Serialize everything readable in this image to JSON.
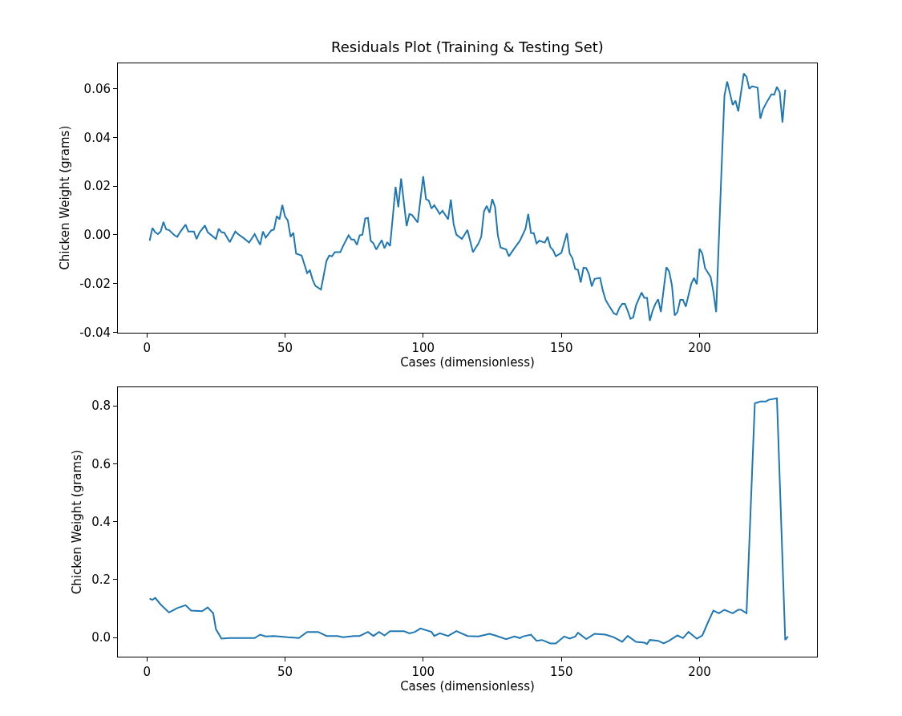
{
  "chart_data": [
    {
      "type": "line",
      "title": "Residuals Plot (Training & Testing Set)",
      "xlabel": "Cases (dimensionless)",
      "ylabel": "Chicken Weight (grams)",
      "xlim": [
        -10.5,
        242.5
      ],
      "ylim": [
        -0.0401,
        0.0705
      ],
      "xticks": [
        0,
        50,
        100,
        150,
        200
      ],
      "yticks": [
        {
          "value": -0.04,
          "label": "-0.04"
        },
        {
          "value": -0.02,
          "label": "-0.02"
        },
        {
          "value": 0,
          "label": "0.00"
        },
        {
          "value": 0.02,
          "label": "0.02"
        },
        {
          "value": 0.04,
          "label": "0.04"
        },
        {
          "value": 0.06,
          "label": "0.06"
        }
      ],
      "series": [
        {
          "color": "#1f77b4",
          "x": [
            1,
            2,
            3,
            4,
            5,
            6,
            7,
            8,
            10,
            11,
            12,
            14,
            15,
            17,
            18,
            19,
            21,
            22,
            25,
            26,
            27,
            28,
            30,
            32,
            33,
            35,
            37,
            39,
            41,
            42,
            43,
            45,
            46,
            47,
            48,
            49,
            50,
            51,
            52,
            53,
            54,
            56,
            58,
            59,
            60,
            61,
            63,
            65,
            66,
            67,
            68,
            70,
            71,
            73,
            74,
            75,
            76,
            77,
            78,
            79,
            80,
            81,
            82,
            83,
            85,
            86,
            87,
            88,
            90,
            91,
            92,
            94,
            95,
            96,
            98,
            100,
            101,
            102,
            103,
            104,
            106,
            107,
            109,
            110,
            111,
            112,
            114,
            116,
            118,
            120,
            121,
            122,
            123,
            124,
            125,
            126,
            127,
            128,
            130,
            131,
            133,
            135,
            137,
            138,
            139,
            140,
            141,
            142,
            144,
            145,
            146,
            147,
            148,
            150,
            152,
            153,
            154,
            155,
            156,
            157,
            158,
            159,
            160,
            161,
            162,
            164,
            165,
            166,
            167,
            169,
            170,
            171,
            172,
            173,
            174,
            175,
            176,
            177,
            179,
            180,
            181,
            182,
            183,
            184,
            185,
            186,
            188,
            189,
            190,
            191,
            192,
            193,
            194,
            195,
            197,
            198,
            199,
            200,
            201,
            202,
            204,
            205,
            206,
            208,
            209,
            210,
            212,
            213,
            214,
            216,
            217,
            218,
            219,
            221,
            222,
            223,
            224,
            226,
            227,
            228,
            229,
            230,
            231
          ],
          "values": [
            -0.0024,
            0.0028,
            0.0011,
            0.0003,
            0.0014,
            0.0053,
            0.0022,
            0.002,
            -0.0002,
            -0.0008,
            0.0011,
            0.0042,
            0.0014,
            0.0014,
            -0.0017,
            0.0009,
            0.0039,
            0.0011,
            -0.0017,
            0.0025,
            0.0011,
            0.0009,
            -0.003,
            0.0014,
            0.0003,
            -0.0013,
            -0.0032,
            0.0003,
            -0.0041,
            0.0014,
            -0.0011,
            0.0018,
            0.0022,
            0.0077,
            0.0064,
            0.0123,
            0.0075,
            0.0059,
            -0.0008,
            0.0009,
            -0.0077,
            -0.0085,
            -0.0157,
            -0.0146,
            -0.0185,
            -0.021,
            -0.0225,
            -0.0107,
            -0.0085,
            -0.0088,
            -0.0071,
            -0.0071,
            -0.0046,
            -0.0002,
            -0.0019,
            -0.0019,
            -0.0041,
            -0.0002,
            0.0001,
            0.0067,
            0.007,
            -0.0024,
            -0.0035,
            -0.006,
            -0.0022,
            -0.0055,
            -0.003,
            -0.0046,
            0.0197,
            0.0114,
            0.0232,
            0.0036,
            0.0086,
            0.0081,
            0.0051,
            0.0241,
            0.0147,
            0.0141,
            0.0108,
            0.0122,
            0.0086,
            0.0099,
            0.0064,
            0.0145,
            0.0044,
            0.0001,
            -0.0017,
            0.002,
            -0.0071,
            -0.0035,
            -0.0008,
            0.0097,
            0.0119,
            0.0091,
            0.0147,
            0.0114,
            -0.0002,
            -0.0052,
            -0.006,
            -0.0088,
            -0.0055,
            -0.0024,
            0.0025,
            0.0086,
            0.0007,
            0.0007,
            -0.0035,
            -0.0024,
            -0.0032,
            -0.0008,
            -0.005,
            -0.0063,
            -0.0088,
            -0.0074,
            0.0007,
            -0.0077,
            -0.0096,
            -0.014,
            -0.0144,
            -0.0196,
            -0.0135,
            -0.0137,
            -0.0162,
            -0.0212,
            -0.0181,
            -0.0177,
            -0.0229,
            -0.0267,
            -0.0287,
            -0.0323,
            -0.0328,
            -0.03,
            -0.0284,
            -0.0284,
            -0.0312,
            -0.0345,
            -0.0339,
            -0.029,
            -0.0237,
            -0.0259,
            -0.0259,
            -0.0353,
            -0.0312,
            -0.0284,
            -0.0265,
            -0.0317,
            -0.0133,
            -0.0151,
            -0.0207,
            -0.0331,
            -0.0317,
            -0.0267,
            -0.0267,
            -0.0295,
            -0.0201,
            -0.0177,
            -0.0203,
            -0.0057,
            -0.0077,
            -0.0137,
            -0.0173,
            -0.0234,
            -0.0317,
            0.0285,
            0.0572,
            0.063,
            0.0534,
            0.0552,
            0.0508,
            0.0663,
            0.065,
            0.06,
            0.0611,
            0.0605,
            0.0478,
            0.0517,
            0.0539,
            0.0578,
            0.0576,
            0.0608,
            0.0586,
            0.0462,
            0.0597
          ]
        }
      ]
    },
    {
      "type": "line",
      "xlabel": "Cases (dimensionless)",
      "ylabel": "Chicken Weight (grams)",
      "xlim": [
        -10.5,
        242.5
      ],
      "ylim": [
        -0.066,
        0.863
      ],
      "xticks": [
        0,
        50,
        100,
        150,
        200
      ],
      "yticks": [
        {
          "value": 0,
          "label": "0.0"
        },
        {
          "value": 0.2,
          "label": "0.2"
        },
        {
          "value": 0.4,
          "label": "0.4"
        },
        {
          "value": 0.6,
          "label": "0.6"
        },
        {
          "value": 0.8,
          "label": "0.8"
        }
      ],
      "series": [
        {
          "color": "#1f77b4",
          "x": [
            1,
            2,
            3,
            5,
            8,
            11,
            14,
            16,
            20,
            22,
            24,
            25,
            27,
            30,
            35,
            39,
            41,
            43,
            46,
            51,
            55,
            58,
            62,
            65,
            69,
            71,
            75,
            77,
            80,
            82,
            84,
            86,
            88,
            93,
            95,
            97,
            99,
            103,
            104,
            106,
            109,
            112,
            116,
            120,
            124,
            126,
            130,
            133,
            135,
            136,
            139,
            141,
            143,
            146,
            148,
            151,
            153,
            155,
            156,
            159,
            162,
            166,
            169,
            172,
            174,
            177,
            180,
            181,
            182,
            185,
            187,
            189,
            192,
            194,
            196,
            198,
            199,
            201,
            203,
            205,
            207,
            209,
            212,
            214,
            215,
            217,
            220,
            222,
            224,
            225,
            228,
            231,
            232
          ],
          "values": [
            0.1346,
            0.13,
            0.137,
            0.114,
            0.0866,
            0.102,
            0.1115,
            0.093,
            0.091,
            0.104,
            0.084,
            0.0286,
            -0.0037,
            -0.0018,
            -0.0018,
            -0.0018,
            0.0101,
            0.0037,
            0.0055,
            0.0009,
            -0.0018,
            0.0194,
            0.0194,
            0.0055,
            0.0055,
            0.0009,
            0.0055,
            0.0055,
            0.0194,
            0.0055,
            0.0194,
            0.0074,
            0.0221,
            0.0221,
            0.0147,
            0.0194,
            0.0313,
            0.0194,
            0.0055,
            0.0147,
            0.0055,
            0.0221,
            0.0055,
            0.0037,
            0.0129,
            0.0074,
            -0.0055,
            0.0037,
            -0.0018,
            0.0037,
            0.0101,
            -0.0111,
            -0.0083,
            -0.0203,
            -0.0203,
            0.0037,
            -0.0037,
            0.0037,
            0.0166,
            -0.0055,
            0.0129,
            0.0101,
            0.0009,
            -0.0147,
            0.0055,
            -0.0147,
            -0.0175,
            -0.0221,
            -0.0083,
            -0.0111,
            -0.0203,
            -0.0111,
            0.0074,
            -0.0018,
            0.0194,
            0.0037,
            -0.0037,
            0.0074,
            0.0516,
            0.0931,
            0.0839,
            0.0959,
            0.0839,
            0.0959,
            0.0959,
            0.0839,
            0.809,
            0.8147,
            0.8147,
            0.821,
            0.826,
            -0.0083,
            0.0037
          ]
        }
      ]
    }
  ]
}
